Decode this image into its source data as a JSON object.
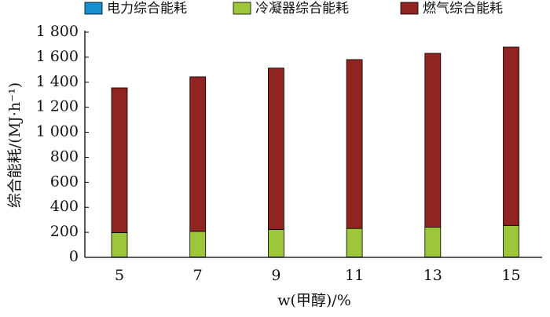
{
  "chart_data": {
    "type": "stacked_bar",
    "x_label": "w(甲醇)/%",
    "y_label": "综合能耗/(MJ·h⁻¹)",
    "categories": [
      "5",
      "7",
      "9",
      "11",
      "13",
      "15"
    ],
    "series": [
      {
        "name": "电力综合能耗",
        "color": "#1a8fd0",
        "values": [
          3,
          3,
          3,
          3,
          3,
          3
        ]
      },
      {
        "name": "冷凝器综合能耗",
        "color": "#9dc63b",
        "values": [
          195,
          205,
          220,
          228,
          238,
          252
        ]
      },
      {
        "name": "燃气综合能耗",
        "color": "#8f2420",
        "values": [
          1157,
          1235,
          1290,
          1350,
          1390,
          1426
        ]
      }
    ],
    "ylim": [
      0,
      1800
    ],
    "yticks": [
      0,
      200,
      400,
      600,
      800,
      {
        "value": 1000,
        "label": "1 000"
      },
      {
        "value": 1200,
        "label": "1 200"
      },
      {
        "value": 1400,
        "label": "1 400"
      },
      {
        "value": 1600,
        "label": "1 600"
      },
      {
        "value": 1800,
        "label": "1 800"
      }
    ],
    "legend": "top"
  }
}
